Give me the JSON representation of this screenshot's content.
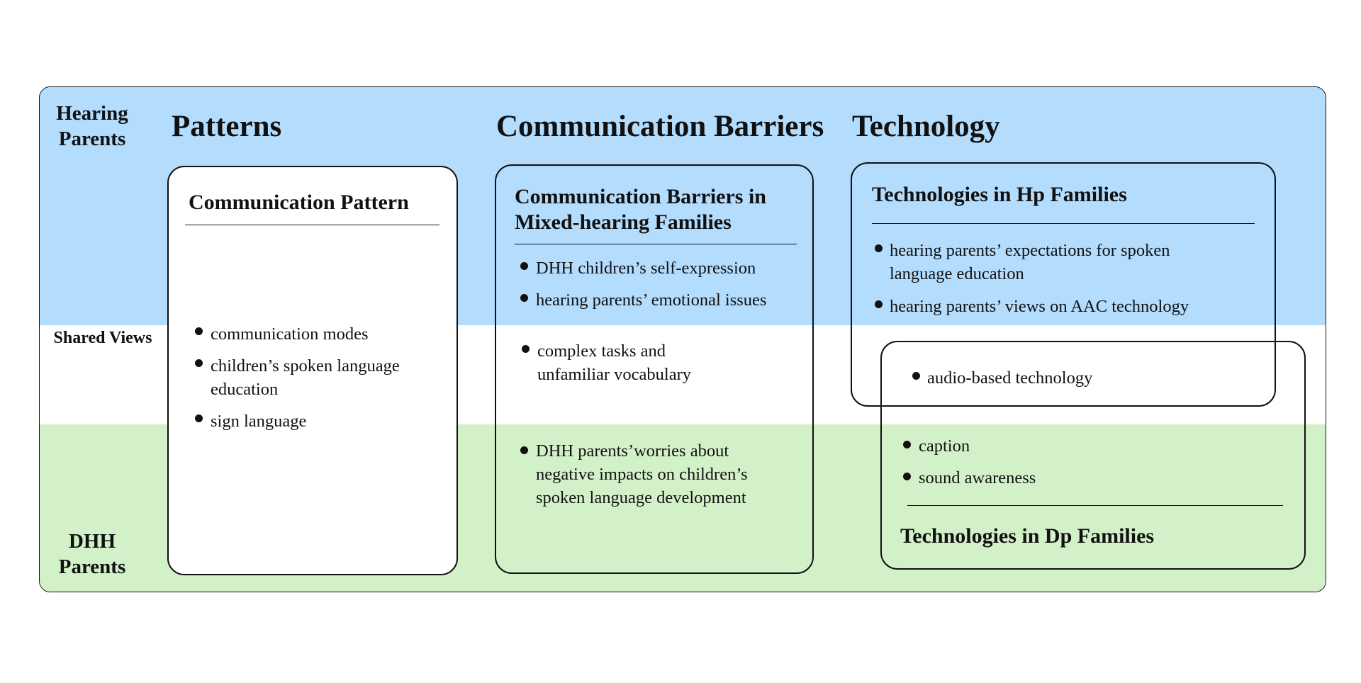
{
  "row_labels": {
    "hearing_parents": "Hearing\nParents",
    "shared_views": "Shared Views",
    "dhh_parents": "DHH\nParents"
  },
  "columns": {
    "patterns": "Patterns",
    "barriers": "Communication Barriers",
    "technology": "Technology"
  },
  "communication_pattern": {
    "title": "Communication Pattern",
    "items": [
      "communication modes",
      "children’s spoken language\neducation",
      "sign language"
    ]
  },
  "barriers_box": {
    "title": "Communication Barriers in\nMixed-hearing Families",
    "hearing_items": [
      "DHH children’s self-expression",
      "hearing parents’ emotional issues"
    ],
    "shared_items": [
      "complex tasks and\nunfamiliar vocabulary"
    ],
    "dhh_items": [
      "DHH parents’worries about\nnegative impacts on children’s\nspoken language development"
    ]
  },
  "tech_hp": {
    "title": "Technologies in Hp Families",
    "items": [
      "hearing parents’ expectations for spoken\nlanguage education",
      "hearing parents’ views on AAC technology"
    ]
  },
  "tech_shared": {
    "items": [
      "audio-based technology"
    ]
  },
  "tech_dp": {
    "title": "Technologies in Dp Families",
    "items": [
      "caption",
      "sound awareness"
    ]
  },
  "colors": {
    "hearing_band": "#b3dcfd",
    "shared_band": "#ffffff",
    "dhh_band": "#d3f1c9",
    "border": "#111111"
  }
}
